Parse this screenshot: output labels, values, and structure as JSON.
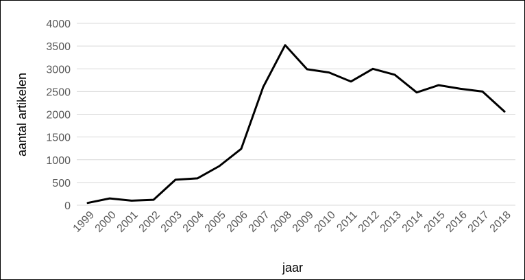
{
  "chart_data": {
    "type": "line",
    "title": "",
    "xlabel": "jaar",
    "ylabel": "aantal artikelen",
    "ylim": [
      0,
      4000
    ],
    "yticks": [
      0,
      500,
      1000,
      1500,
      2000,
      2500,
      3000,
      3500,
      4000
    ],
    "grid": true,
    "legend": "none",
    "colors": {
      "line": "#000000",
      "grid": "#d9d9d9",
      "tick_text": "#595959"
    },
    "categories": [
      "1999",
      "2000",
      "2001",
      "2002",
      "2003",
      "2004",
      "2005",
      "2006",
      "2007",
      "2008",
      "2009",
      "2010",
      "2011",
      "2012",
      "2013",
      "2014",
      "2015",
      "2016",
      "2017",
      "2018"
    ],
    "series": [
      {
        "values": [
          50,
          150,
          100,
          120,
          560,
          590,
          860,
          1240,
          2600,
          3520,
          2990,
          2920,
          2720,
          3000,
          2870,
          2480,
          2640,
          2560,
          2500,
          2060
        ]
      }
    ]
  }
}
